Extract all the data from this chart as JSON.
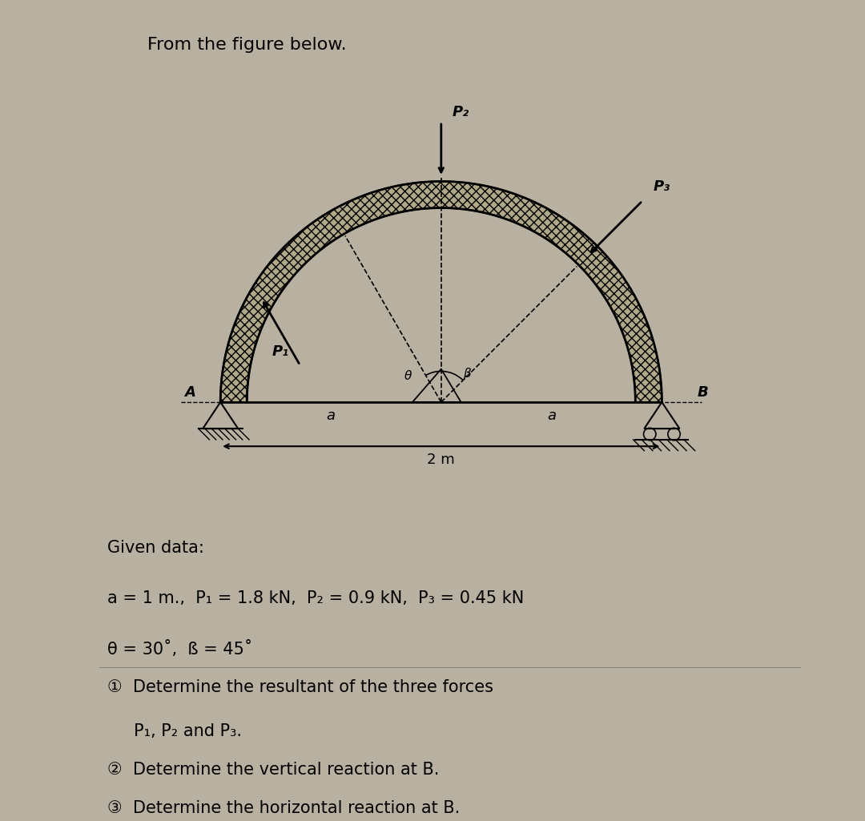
{
  "bg_color": "#c8c0b0",
  "fig_bg_color": "#b8b0a0",
  "title": "From the figure below.",
  "title_fontsize": 16,
  "given_data_line1": "Given data:",
  "given_data_line2": "a = 1 m.,  P₁ = 1.8 kN,  P₂ = 0.9 kN,  P₃ = 0.45 kN",
  "given_data_line3": "θ = 30˚,  ß = 45˚",
  "q1_line1": "①  Determine the resultant of the three forces",
  "q1_line2": "     P₁, P₂ and P₃.",
  "q2": "②  Determine the vertical reaction at B.",
  "q3": "③  Determine the horizontal reaction at B.",
  "text_fontsize": 15,
  "dim_label_2m": "2 m",
  "label_a_left": "a",
  "label_a_right": "a",
  "label_A": "A",
  "label_B": "B",
  "theta_label": "θ",
  "beta_label": "β",
  "P1_label": "P₁",
  "P2_label": "P₂",
  "P3_label": "P₃"
}
